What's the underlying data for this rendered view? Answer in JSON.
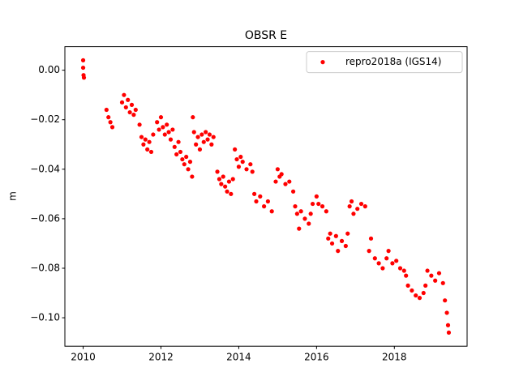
{
  "chart_data": {
    "type": "scatter",
    "title": "OBSR E",
    "ylabel": "m",
    "x": [
      2010.0,
      2010.0,
      2010.01,
      2010.02,
      2010.6,
      2010.65,
      2010.7,
      2010.75,
      2011.0,
      2011.05,
      2011.1,
      2011.15,
      2011.2,
      2011.25,
      2011.3,
      2011.35,
      2011.45,
      2011.5,
      2011.55,
      2011.6,
      2011.65,
      2011.7,
      2011.75,
      2011.8,
      2011.9,
      2011.95,
      2012.0,
      2012.05,
      2012.1,
      2012.15,
      2012.2,
      2012.25,
      2012.3,
      2012.35,
      2012.4,
      2012.45,
      2012.5,
      2012.55,
      2012.6,
      2012.65,
      2012.7,
      2012.75,
      2012.8,
      2012.82,
      2012.85,
      2012.9,
      2012.95,
      2013.0,
      2013.05,
      2013.1,
      2013.15,
      2013.2,
      2013.25,
      2013.3,
      2013.35,
      2013.45,
      2013.5,
      2013.55,
      2013.6,
      2013.65,
      2013.7,
      2013.75,
      2013.8,
      2013.85,
      2013.9,
      2013.95,
      2014.0,
      2014.05,
      2014.1,
      2014.2,
      2014.3,
      2014.35,
      2014.4,
      2014.45,
      2014.55,
      2014.65,
      2014.75,
      2014.85,
      2014.95,
      2015.0,
      2015.05,
      2015.1,
      2015.2,
      2015.3,
      2015.4,
      2015.45,
      2015.5,
      2015.55,
      2015.6,
      2015.7,
      2015.8,
      2015.85,
      2015.9,
      2016.0,
      2016.05,
      2016.15,
      2016.25,
      2016.3,
      2016.35,
      2016.4,
      2016.5,
      2016.55,
      2016.65,
      2016.75,
      2016.8,
      2016.85,
      2016.9,
      2016.95,
      2017.05,
      2017.15,
      2017.25,
      2017.35,
      2017.4,
      2017.5,
      2017.6,
      2017.7,
      2017.8,
      2017.85,
      2017.95,
      2018.05,
      2018.15,
      2018.25,
      2018.3,
      2018.35,
      2018.45,
      2018.55,
      2018.65,
      2018.75,
      2018.8,
      2018.85,
      2018.95,
      2019.05,
      2019.15,
      2019.25,
      2019.3,
      2019.35,
      2019.38,
      2019.4
    ],
    "series": [
      {
        "name": "repro2018a (IGS14)",
        "color": "#ff0000",
        "values": [
          0.004,
          0.001,
          -0.002,
          -0.003,
          -0.016,
          -0.019,
          -0.021,
          -0.023,
          -0.013,
          -0.01,
          -0.015,
          -0.012,
          -0.017,
          -0.014,
          -0.018,
          -0.016,
          -0.022,
          -0.027,
          -0.03,
          -0.028,
          -0.032,
          -0.029,
          -0.033,
          -0.026,
          -0.021,
          -0.024,
          -0.019,
          -0.023,
          -0.026,
          -0.022,
          -0.025,
          -0.028,
          -0.024,
          -0.031,
          -0.034,
          -0.029,
          -0.033,
          -0.036,
          -0.038,
          -0.035,
          -0.04,
          -0.037,
          -0.043,
          -0.019,
          -0.025,
          -0.03,
          -0.027,
          -0.032,
          -0.026,
          -0.029,
          -0.025,
          -0.028,
          -0.026,
          -0.03,
          -0.027,
          -0.041,
          -0.044,
          -0.046,
          -0.043,
          -0.047,
          -0.049,
          -0.045,
          -0.05,
          -0.044,
          -0.032,
          -0.036,
          -0.039,
          -0.035,
          -0.037,
          -0.04,
          -0.038,
          -0.041,
          -0.05,
          -0.053,
          -0.051,
          -0.055,
          -0.053,
          -0.057,
          -0.045,
          -0.04,
          -0.043,
          -0.042,
          -0.046,
          -0.045,
          -0.049,
          -0.055,
          -0.058,
          -0.064,
          -0.057,
          -0.06,
          -0.062,
          -0.058,
          -0.054,
          -0.051,
          -0.054,
          -0.055,
          -0.057,
          -0.068,
          -0.066,
          -0.07,
          -0.067,
          -0.073,
          -0.069,
          -0.071,
          -0.066,
          -0.055,
          -0.053,
          -0.058,
          -0.056,
          -0.054,
          -0.055,
          -0.073,
          -0.068,
          -0.076,
          -0.078,
          -0.08,
          -0.076,
          -0.073,
          -0.078,
          -0.077,
          -0.08,
          -0.081,
          -0.083,
          -0.087,
          -0.089,
          -0.091,
          -0.092,
          -0.09,
          -0.087,
          -0.081,
          -0.083,
          -0.085,
          -0.082,
          -0.086,
          -0.093,
          -0.098,
          -0.103,
          -0.106
        ]
      }
    ],
    "xlim": [
      2009.53,
      2019.87
    ],
    "ylim": [
      -0.1115,
      0.0095
    ],
    "xticks": [
      2010,
      2012,
      2014,
      2016,
      2018
    ],
    "yticks": [
      {
        "value": 0,
        "label": "0.00"
      },
      {
        "value": -0.02,
        "label": "−0.02"
      },
      {
        "value": -0.04,
        "label": "−0.04"
      },
      {
        "value": -0.06,
        "label": "−0.06"
      },
      {
        "value": -0.08,
        "label": "−0.08"
      },
      {
        "value": -0.1,
        "label": "−0.10"
      }
    ],
    "legend": "upper right",
    "grid": false
  }
}
